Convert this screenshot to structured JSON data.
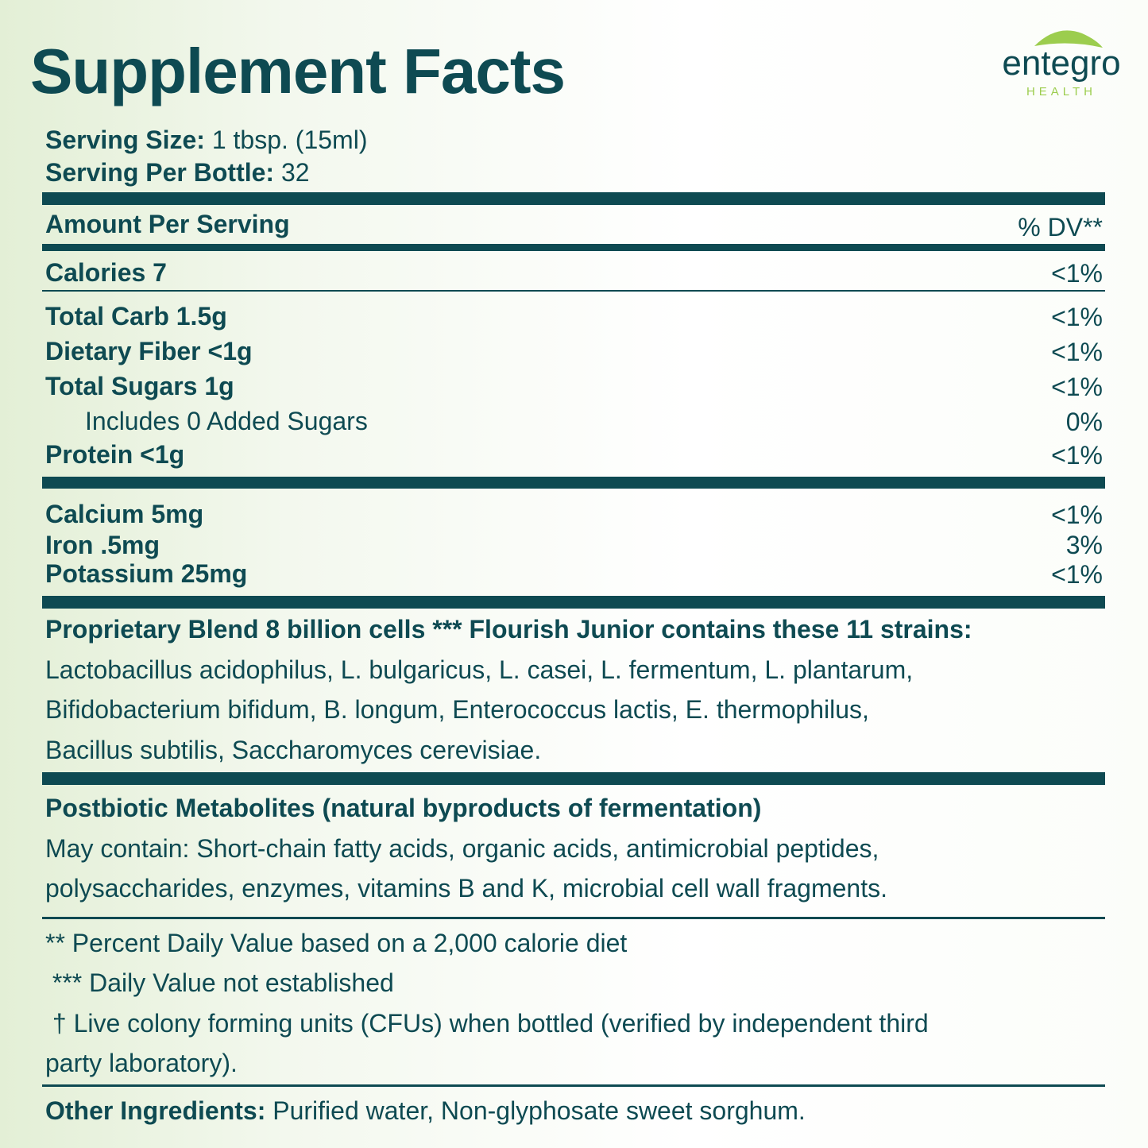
{
  "title": "Supplement Facts",
  "logo": {
    "name": "entegro",
    "sub": "HEALTH"
  },
  "serving": [
    {
      "label": "Serving Size:",
      "value": "1 tbsp. (15ml)"
    },
    {
      "label": "Serving Per Bottle:",
      "value": "32"
    }
  ],
  "header": {
    "left": "Amount Per Serving",
    "right": "% DV**"
  },
  "rows": [
    {
      "name": "Calories 7",
      "dv": "<1%"
    },
    {
      "name": "Total Carb 1.5g",
      "dv": "<1%"
    },
    {
      "name": "Dietary Fiber <1g",
      "dv": "<1%"
    },
    {
      "name": "Total Sugars 1g",
      "dv": "<1%"
    },
    {
      "name": "Includes 0 Added Sugars",
      "dv": "0%"
    },
    {
      "name": "Protein <1g",
      "dv": "<1%"
    },
    {
      "name": "Calcium 5mg",
      "dv": "<1%"
    },
    {
      "name": "Iron .5mg",
      "dv": "3%"
    },
    {
      "name": "Potassium 25mg",
      "dv": "<1%"
    }
  ],
  "blend": {
    "heading": "Proprietary Blend 8 billion cells *** Flourish Junior contains these 11 strains:",
    "lines": [
      "Lactobacillus acidophilus, L. bulgaricus, L. casei, L. fermentum, L. plantarum,",
      "Bifidobacterium bifidum, B. longum, Enterococcus lactis, E. thermophilus,",
      "Bacillus subtilis, Saccharomyces cerevisiae."
    ]
  },
  "postbiotic": {
    "heading": "Postbiotic Metabolites (natural byproducts of fermentation)",
    "lines": [
      "May contain: Short-chain fatty acids, organic acids, antimicrobial peptides,",
      "polysaccharides, enzymes, vitamins B and K, microbial cell wall fragments."
    ]
  },
  "notes": [
    "** Percent Daily Value based on a 2,000 calorie diet",
    " *** Daily Value not established",
    " † Live colony forming units (CFUs) when bottled (verified by independent third",
    "party laboratory)."
  ],
  "other": {
    "label": "Other Ingredients:",
    "value": "Purified water, Non-glyphosate sweet sorghum."
  }
}
